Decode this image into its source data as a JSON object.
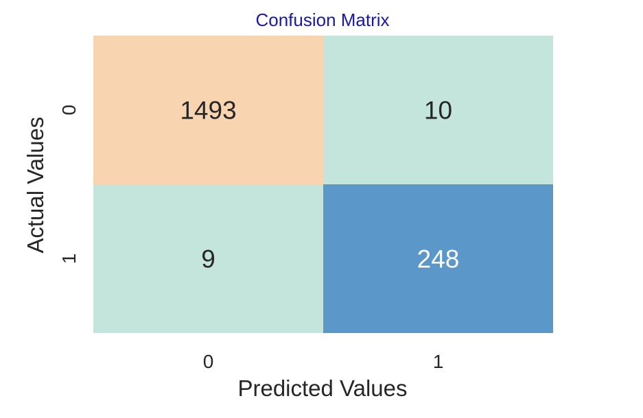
{
  "chart_data": {
    "type": "heatmap",
    "title": "Confusion Matrix",
    "xlabel": "Predicted Values",
    "ylabel": "Actual Values",
    "x_categories": [
      "0",
      "1"
    ],
    "y_categories": [
      "0",
      "1"
    ],
    "cells": [
      {
        "actual": "0",
        "predicted": "0",
        "value": 1493,
        "label": "1493",
        "color": "#f8d4b0"
      },
      {
        "actual": "0",
        "predicted": "1",
        "value": 10,
        "label": "10",
        "color": "#c4e5dc"
      },
      {
        "actual": "1",
        "predicted": "0",
        "value": 9,
        "label": "9",
        "color": "#c4e5dc"
      },
      {
        "actual": "1",
        "predicted": "1",
        "value": 248,
        "label": "248",
        "color": "#5b97c8"
      }
    ],
    "colorbar": false,
    "grid": false
  },
  "colors": {
    "title": "#1a1aa0",
    "text_dark": "#262626",
    "text_light": "#ffffff"
  }
}
